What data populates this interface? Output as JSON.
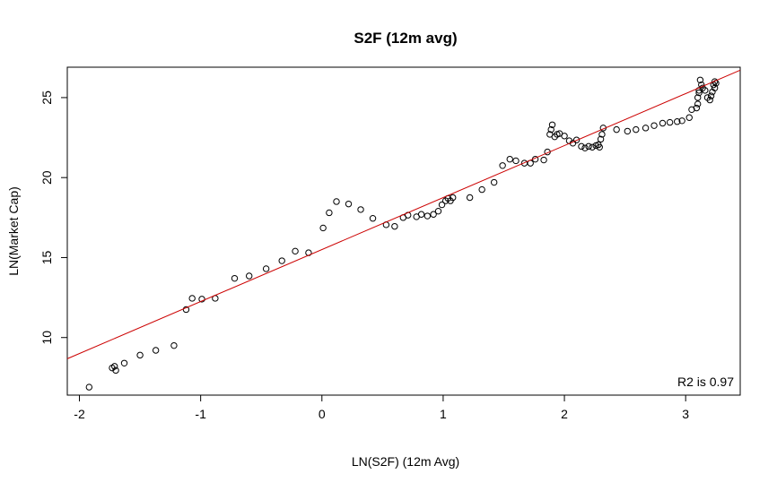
{
  "chart_data": {
    "type": "scatter",
    "title": "S2F (12m avg)",
    "xlabel": "LN(S2F) (12m Avg)",
    "ylabel": "LN(Market Cap)",
    "xlim": [
      -2.1,
      3.45
    ],
    "ylim": [
      6.4,
      26.9
    ],
    "xticks": [
      -2,
      -1,
      0,
      1,
      2,
      3
    ],
    "yticks": [
      10,
      15,
      20,
      25
    ],
    "grid": false,
    "legend": "none",
    "point_color": "#000000",
    "fit_line": {
      "color": "#cc0000",
      "intercept": 15.5,
      "slope": 3.25
    },
    "annotation": "R2 is 0.97",
    "points": [
      [
        -1.92,
        6.9
      ],
      [
        -1.73,
        8.1
      ],
      [
        -1.71,
        8.2
      ],
      [
        -1.7,
        7.95
      ],
      [
        -1.63,
        8.4
      ],
      [
        -1.5,
        8.9
      ],
      [
        -1.37,
        9.2
      ],
      [
        -1.22,
        9.5
      ],
      [
        -1.12,
        11.75
      ],
      [
        -1.07,
        12.45
      ],
      [
        -0.99,
        12.4
      ],
      [
        -0.88,
        12.45
      ],
      [
        -0.72,
        13.7
      ],
      [
        -0.6,
        13.85
      ],
      [
        -0.46,
        14.3
      ],
      [
        -0.33,
        14.8
      ],
      [
        -0.22,
        15.4
      ],
      [
        -0.11,
        15.3
      ],
      [
        0.01,
        16.85
      ],
      [
        0.06,
        17.8
      ],
      [
        0.12,
        18.5
      ],
      [
        0.22,
        18.35
      ],
      [
        0.32,
        18.0
      ],
      [
        0.42,
        17.45
      ],
      [
        0.53,
        17.05
      ],
      [
        0.6,
        16.95
      ],
      [
        0.67,
        17.5
      ],
      [
        0.71,
        17.65
      ],
      [
        0.78,
        17.55
      ],
      [
        0.82,
        17.7
      ],
      [
        0.87,
        17.6
      ],
      [
        0.92,
        17.7
      ],
      [
        0.96,
        17.9
      ],
      [
        0.99,
        18.3
      ],
      [
        1.02,
        18.55
      ],
      [
        1.04,
        18.7
      ],
      [
        1.06,
        18.55
      ],
      [
        1.08,
        18.75
      ],
      [
        1.22,
        18.75
      ],
      [
        1.32,
        19.25
      ],
      [
        1.42,
        19.7
      ],
      [
        1.49,
        20.75
      ],
      [
        1.55,
        21.15
      ],
      [
        1.6,
        21.05
      ],
      [
        1.67,
        20.9
      ],
      [
        1.72,
        20.9
      ],
      [
        1.76,
        21.15
      ],
      [
        1.83,
        21.1
      ],
      [
        1.86,
        21.6
      ],
      [
        1.88,
        22.7
      ],
      [
        1.89,
        23.0
      ],
      [
        1.9,
        23.3
      ],
      [
        1.92,
        22.55
      ],
      [
        1.94,
        22.7
      ],
      [
        1.96,
        22.75
      ],
      [
        2.0,
        22.6
      ],
      [
        2.04,
        22.3
      ],
      [
        2.07,
        22.15
      ],
      [
        2.1,
        22.35
      ],
      [
        2.14,
        21.95
      ],
      [
        2.17,
        21.85
      ],
      [
        2.2,
        21.95
      ],
      [
        2.23,
        21.9
      ],
      [
        2.26,
        22.0
      ],
      [
        2.28,
        22.05
      ],
      [
        2.29,
        21.9
      ],
      [
        2.3,
        22.4
      ],
      [
        2.31,
        22.7
      ],
      [
        2.32,
        23.1
      ],
      [
        2.43,
        23.0
      ],
      [
        2.52,
        22.9
      ],
      [
        2.59,
        23.0
      ],
      [
        2.67,
        23.1
      ],
      [
        2.74,
        23.25
      ],
      [
        2.81,
        23.4
      ],
      [
        2.87,
        23.45
      ],
      [
        2.93,
        23.5
      ],
      [
        2.97,
        23.55
      ],
      [
        3.03,
        23.75
      ],
      [
        3.05,
        24.25
      ],
      [
        3.09,
        24.35
      ],
      [
        3.1,
        24.6
      ],
      [
        3.1,
        25.0
      ],
      [
        3.11,
        25.3
      ],
      [
        3.11,
        25.45
      ],
      [
        3.12,
        26.1
      ],
      [
        3.13,
        25.8
      ],
      [
        3.14,
        25.6
      ],
      [
        3.16,
        25.45
      ],
      [
        3.18,
        25.0
      ],
      [
        3.2,
        24.85
      ],
      [
        3.21,
        25.1
      ],
      [
        3.22,
        25.35
      ],
      [
        3.23,
        25.8
      ],
      [
        3.24,
        26.0
      ],
      [
        3.24,
        25.6
      ],
      [
        3.25,
        25.9
      ]
    ]
  }
}
